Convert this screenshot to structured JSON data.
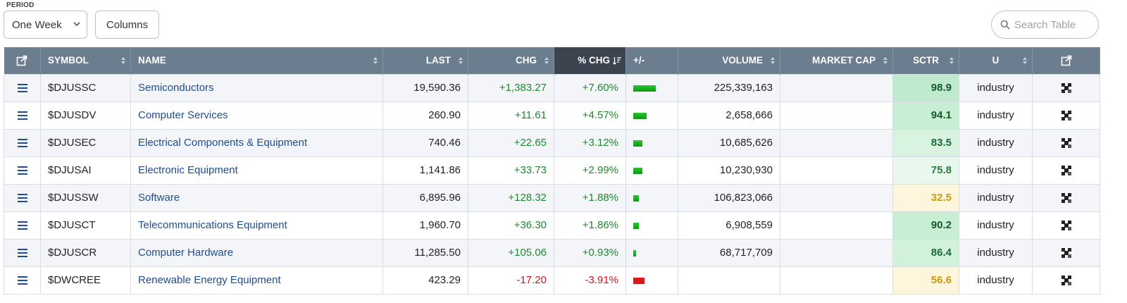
{
  "toolbar": {
    "period_label": "PERIOD",
    "period_value": "One Week",
    "columns_label": "Columns",
    "search_placeholder": "Search Table"
  },
  "colors": {
    "header_bg": "#6b7d8e",
    "sorted_header_bg": "#3b444f",
    "positive": "#1c8a2c",
    "negative": "#d0141b",
    "link": "#1f4c8f"
  },
  "headers": {
    "symbol": "SYMBOL",
    "name": "NAME",
    "last": "LAST",
    "chg": "CHG",
    "pct_chg": "% CHG",
    "plus_minus": "+/-",
    "volume": "VOLUME",
    "market_cap": "MARKET CAP",
    "sctr": "SCTR",
    "u": "U"
  },
  "rows": [
    {
      "symbol": "$DJUSSC",
      "name": "Semiconductors",
      "last": "19,590.36",
      "chg": "+1,383.27",
      "pct": "+7.60%",
      "pct_value": 7.6,
      "volume": "225,339,163",
      "market_cap": "",
      "sctr": "98.9",
      "sctr_bg": "#bfeacd",
      "sctr_color": "#14592a",
      "u": "industry"
    },
    {
      "symbol": "$DJUSDV",
      "name": "Computer Services",
      "last": "260.90",
      "chg": "+11.61",
      "pct": "+4.57%",
      "pct_value": 4.57,
      "volume": "2,658,666",
      "market_cap": "",
      "sctr": "94.1",
      "sctr_bg": "#c8eed3",
      "sctr_color": "#14592a",
      "u": "industry"
    },
    {
      "symbol": "$DJUSEC",
      "name": "Electrical Components & Equipment",
      "last": "740.46",
      "chg": "+22.65",
      "pct": "+3.12%",
      "pct_value": 3.12,
      "volume": "10,685,626",
      "market_cap": "",
      "sctr": "83.5",
      "sctr_bg": "#d9f3e1",
      "sctr_color": "#1d6b34",
      "u": "industry"
    },
    {
      "symbol": "$DJUSAI",
      "name": "Electronic Equipment",
      "last": "1,141.86",
      "chg": "+33.73",
      "pct": "+2.99%",
      "pct_value": 2.99,
      "volume": "10,230,930",
      "market_cap": "",
      "sctr": "75.8",
      "sctr_bg": "#e9f8ee",
      "sctr_color": "#2d7a44",
      "u": "industry"
    },
    {
      "symbol": "$DJUSSW",
      "name": "Software",
      "last": "6,895.96",
      "chg": "+128.32",
      "pct": "+1.88%",
      "pct_value": 1.88,
      "volume": "106,823,066",
      "market_cap": "",
      "sctr": "32.5",
      "sctr_bg": "#fdf6dc",
      "sctr_color": "#c79a10",
      "u": "industry"
    },
    {
      "symbol": "$DJUSCT",
      "name": "Telecommunications Equipment",
      "last": "1,960.70",
      "chg": "+36.30",
      "pct": "+1.86%",
      "pct_value": 1.86,
      "volume": "6,908,559",
      "market_cap": "",
      "sctr": "90.2",
      "sctr_bg": "#c8eed3",
      "sctr_color": "#14592a",
      "u": "industry"
    },
    {
      "symbol": "$DJUSCR",
      "name": "Computer Hardware",
      "last": "11,285.50",
      "chg": "+105.06",
      "pct": "+0.93%",
      "pct_value": 0.93,
      "volume": "68,717,709",
      "market_cap": "",
      "sctr": "86.4",
      "sctr_bg": "#d1f1da",
      "sctr_color": "#1d6b34",
      "u": "industry"
    },
    {
      "symbol": "$DWCREE",
      "name": "Renewable Energy Equipment",
      "last": "423.29",
      "chg": "-17.20",
      "pct": "-3.91%",
      "pct_value": -3.91,
      "volume": "",
      "market_cap": "",
      "sctr": "56.6",
      "sctr_bg": "#fdf6dc",
      "sctr_color": "#c79a10",
      "u": "industry"
    }
  ]
}
